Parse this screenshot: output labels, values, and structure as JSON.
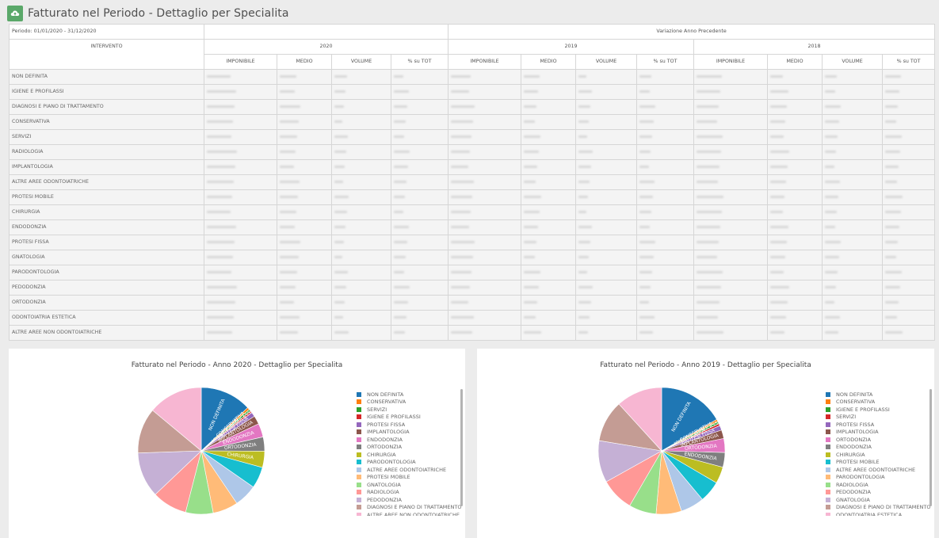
{
  "page": {
    "title": "Fatturato nel Periodo - Dettaglio per Specialita"
  },
  "table": {
    "period_label": "Periodo: 01/01/2020 - 31/12/2020",
    "variation_label": "Variazione Anno Precedente",
    "intervento_header": "INTERVENTO",
    "years": [
      "2020",
      "2019",
      "2018"
    ],
    "sub_headers": [
      "IMPONIBILE",
      "MEDIO",
      "VOLUME",
      "% su TOT"
    ],
    "rows": [
      "NON DEFINITA",
      "IGIENE E PROFILASSI",
      "DIAGNOSI E PIANO DI TRATTAMENTO",
      "CONSERVATIVA",
      "SERVIZI",
      "RADIOLOGIA",
      "IMPLANTOLOGIA",
      "ALTRE AREE ODONTOIATRICHE",
      "PROTESI MOBILE",
      "CHIRURGIA",
      "ENDODONZIA",
      "PROTESI FISSA",
      "GNATOLOGIA",
      "PARODONTOLOGIA",
      "PEDODONZIA",
      "ORTODONZIA",
      "ODONTOIATRIA ESTETICA",
      "ALTRE AREE NON ODONTOIATRICHE"
    ]
  },
  "charts": [
    {
      "title": "Fatturato nel Periodo - Anno 2020 - Dettaglio per Specialita",
      "legend": [
        "NON DEFINITA",
        "CONSERVATIVA",
        "SERVIZI",
        "IGIENE E PROFILASSI",
        "PROTESI FISSA",
        "IMPLANTOLOGIA",
        "ENDODONZIA",
        "ORTODONZIA",
        "CHIRURGIA",
        "PARODONTOLOGIA",
        "ALTRE AREE ODONTOIATRICHE",
        "PROTESI MOBILE",
        "GNATOLOGIA",
        "RADIOLOGIA",
        "PEDODONZIA",
        "DIAGNOSI E PIANO DI TRATTAMENTO",
        "ALTRE AREE NON ODONTOIATRICHE"
      ]
    },
    {
      "title": "Fatturato nel Periodo - Anno 2019 - Dettaglio per Specialita",
      "legend": [
        "NON DEFINITA",
        "CONSERVATIVA",
        "IGIENE E PROFILASSI",
        "SERVIZI",
        "PROTESI FISSA",
        "IMPLANTOLOGIA",
        "ORTODONZIA",
        "ENDODONZIA",
        "CHIRURGIA",
        "PROTESI MOBILE",
        "ALTRE AREE ODONTOIATRICHE",
        "PARODONTOLOGIA",
        "RADIOLOGIA",
        "PEDODONZIA",
        "GNATOLOGIA",
        "DIAGNOSI E PIANO DI TRATTAMENTO",
        "ODONTOIATRIA ESTETICA"
      ]
    }
  ],
  "chart_data": [
    {
      "type": "pie",
      "title": "Fatturato nel Periodo - Anno 2020 - Dettaglio per Specialita",
      "slices": [
        {
          "label": "NON DEFINITA",
          "value": 31.5,
          "color": "#1f77b4",
          "text": "NON DEFINITA"
        },
        {
          "label": "CONSERVATIVA",
          "value": 1.4,
          "color": "#ff7f0e",
          "text": "CONSERVATIVA"
        },
        {
          "label": "SERVIZI",
          "value": 1.3,
          "color": "#2ca02c",
          "text": "SERVIZI"
        },
        {
          "label": "IGIENE E PROFILASSI",
          "value": 1.2,
          "color": "#d62728",
          "text": "IGIENE E PROFILASSI"
        },
        {
          "label": "PROTESI FISSA",
          "value": 2.7,
          "color": "#9467bd",
          "text": "PROTESI FISSA"
        },
        {
          "label": "IMPLANTOLOGIA",
          "value": 5.2,
          "color": "#8c564b",
          "text": "IMPLANTOLOGIA"
        },
        {
          "label": "ENDODONZIA",
          "value": 8.4,
          "color": "#e377c2",
          "text": "ENDODONZIA"
        },
        {
          "label": "ORTODONZIA",
          "value": 8.7,
          "color": "#7f7f7f",
          "text": "ORTODONZIA"
        },
        {
          "label": "CHIRURGIA",
          "value": 10.0,
          "color": "#bcbd22",
          "text": "CHIRURGIA"
        },
        {
          "label": "PARODONTOLOGIA",
          "value": 13.1,
          "color": "#17becf",
          "text": ""
        },
        {
          "label": "ALTRE AREE ODONTOIATRICHE",
          "value": 14.1,
          "color": "#aec7e8",
          "text": ""
        },
        {
          "label": "PROTESI MOBILE",
          "value": 15.5,
          "color": "#ffbb78",
          "text": ""
        },
        {
          "label": "GNATOLOGIA",
          "value": 16.9,
          "color": "#98df8a",
          "text": ""
        },
        {
          "label": "RADIOLOGIA",
          "value": 21.5,
          "color": "#ff9896",
          "text": ""
        },
        {
          "label": "PEDODONZIA",
          "value": 27.8,
          "color": "#c5b0d5",
          "text": ""
        },
        {
          "label": "DIAGNOSI E PIANO DI TRATTAMENTO",
          "value": 27.9,
          "color": "#c49c94",
          "text": ""
        },
        {
          "label": "ALTRE AREE NON ODONTOIATRICHE",
          "value": 33.6,
          "color": "#f7b6d2",
          "text": ""
        }
      ]
    },
    {
      "type": "pie",
      "title": "Fatturato nel Periodo - Anno 2019 - Dettaglio per Specialita",
      "slices": [
        {
          "label": "NON DEFINITA",
          "value": 36.7,
          "color": "#1f77b4",
          "text": "NON DEFINITA"
        },
        {
          "label": "CONSERVATIVA",
          "value": 1.3,
          "color": "#ff7f0e",
          "text": "CONSERVATIVA"
        },
        {
          "label": "IGIENE E PROFILASSI",
          "value": 1.3,
          "color": "#2ca02c",
          "text": "IGIENE E PROFILASSI"
        },
        {
          "label": "SERVIZI",
          "value": 1.2,
          "color": "#d62728",
          "text": "SERVIZI"
        },
        {
          "label": "PROTESI FISSA",
          "value": 2.6,
          "color": "#9467bd",
          "text": "PROTESI FISSA"
        },
        {
          "label": "IMPLANTOLOGIA",
          "value": 4.8,
          "color": "#8c564b",
          "text": "IMPLANTOLOGIA"
        },
        {
          "label": "ORTODONZIA",
          "value": 7.8,
          "color": "#e377c2",
          "text": "ORTODONZIA"
        },
        {
          "label": "ENDODONZIA",
          "value": 8.2,
          "color": "#7f7f7f",
          "text": "ENDODONZIA"
        },
        {
          "label": "CHIRURGIA",
          "value": 9.3,
          "color": "#bcbd22",
          "text": ""
        },
        {
          "label": "PROTESI MOBILE",
          "value": 12.0,
          "color": "#17becf",
          "text": ""
        },
        {
          "label": "ALTRE AREE ODONTOIATRICHE",
          "value": 13.2,
          "color": "#aec7e8",
          "text": ""
        },
        {
          "label": "PARODONTOLOGIA",
          "value": 14.2,
          "color": "#ffbb78",
          "text": ""
        },
        {
          "label": "RADIOLOGIA",
          "value": 15.3,
          "color": "#98df8a",
          "text": ""
        },
        {
          "label": "PEDODONZIA",
          "value": 18.6,
          "color": "#ff9896",
          "text": ""
        },
        {
          "label": "GNATOLOGIA",
          "value": 23.4,
          "color": "#c5b0d5",
          "text": ""
        },
        {
          "label": "DIAGNOSI E PIANO DI TRATTAMENTO",
          "value": 23.3,
          "color": "#c49c94",
          "text": ""
        },
        {
          "label": "ODONTOIATRIA ESTETICA",
          "value": 25.8,
          "color": "#f7b6d2",
          "text": ""
        }
      ]
    }
  ]
}
